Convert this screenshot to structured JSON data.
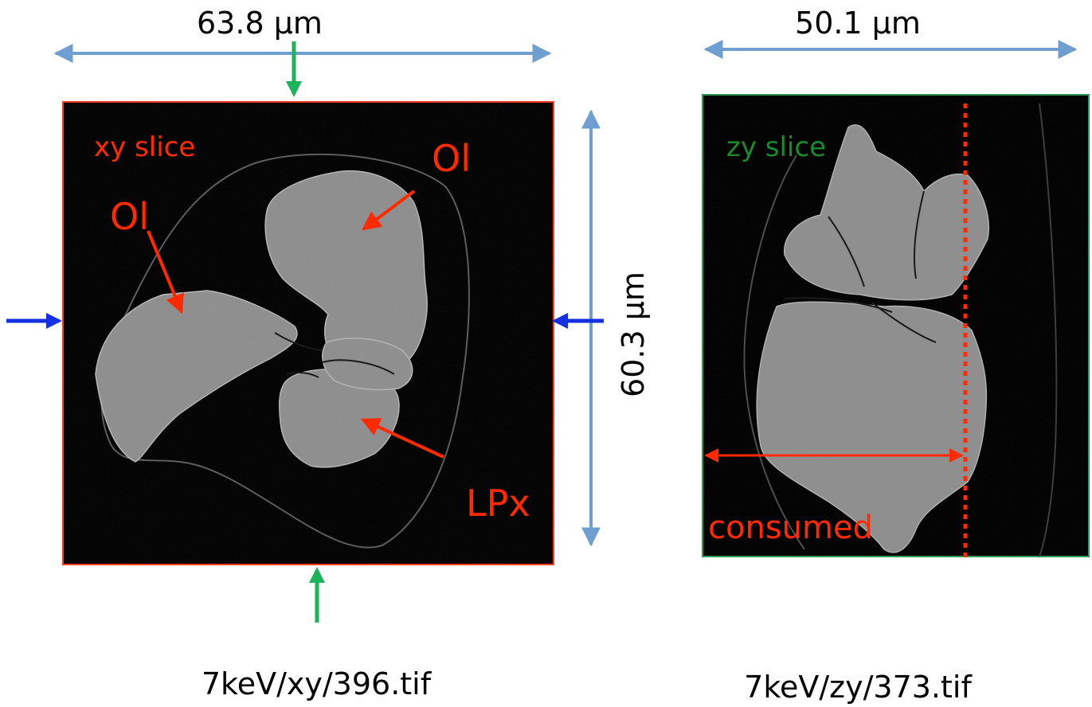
{
  "left_panel": {
    "title": "xy slice",
    "width_label": "63.8 µm",
    "height_label": "60.3 µm",
    "caption": "7keV/xy/396.tif",
    "mineral_labels": [
      "Ol",
      "Ol",
      "LPx"
    ]
  },
  "right_panel": {
    "title": "zy slice",
    "width_label": "50.1 µm",
    "caption": "7keV/zy/373.tif",
    "consumed_label": "consumed"
  },
  "colors": {
    "dimension_arrow": "#6f9fd0",
    "annotation_red": "#ff2a00",
    "xy_border": "#ff3a1a",
    "zy_border": "#2e9a55",
    "zy_title": "#1a8a2a",
    "green_marker": "#1db35a",
    "blue_marker": "#1430e0",
    "slice_bg": "#000000",
    "grain_fill": "#8e8e8e"
  }
}
